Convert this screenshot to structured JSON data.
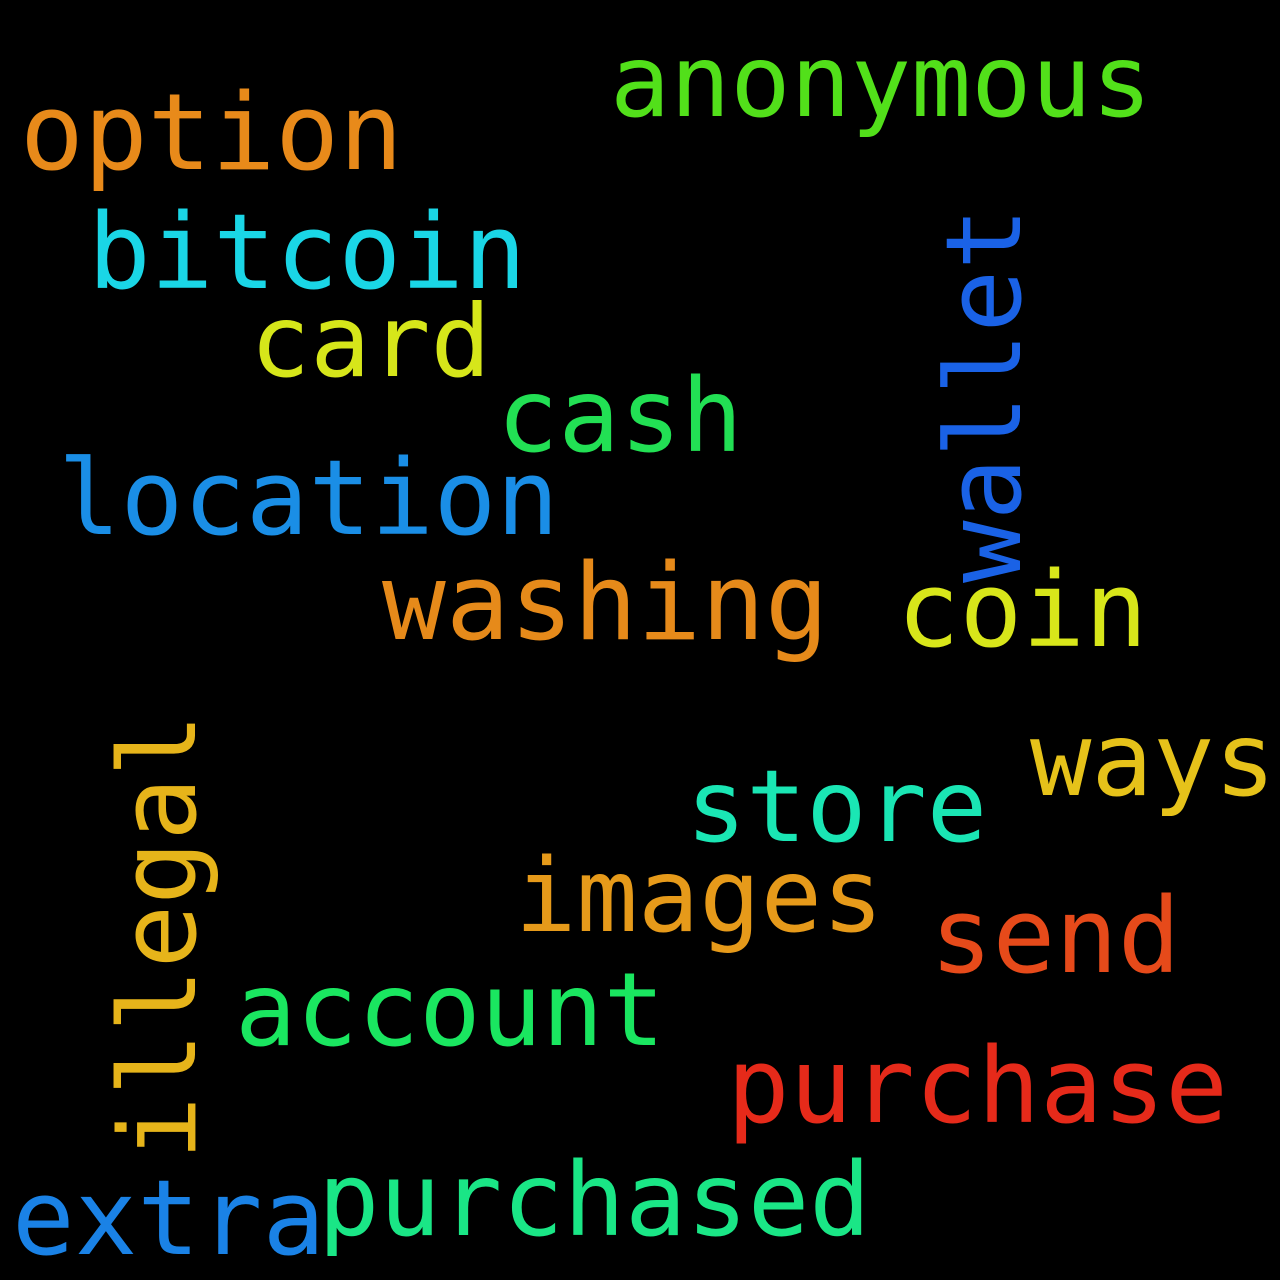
{
  "words": {
    "anonymous": {
      "text": "anonymous",
      "color": "#52e01a"
    },
    "option": {
      "text": "option",
      "color": "#e88a1a"
    },
    "bitcoin": {
      "text": "bitcoin",
      "color": "#1ad6e6"
    },
    "card": {
      "text": "card",
      "color": "#d6e61a"
    },
    "cash": {
      "text": "cash",
      "color": "#22e054"
    },
    "location": {
      "text": "location",
      "color": "#1a8ee6"
    },
    "washing": {
      "text": "washing",
      "color": "#e68a1a"
    },
    "coin": {
      "text": "coin",
      "color": "#d8e61a"
    },
    "wallet": {
      "text": "wallet",
      "color": "#1a62e6"
    },
    "ways": {
      "text": "ways",
      "color": "#e6c21a"
    },
    "store": {
      "text": "store",
      "color": "#1ae6b4"
    },
    "images": {
      "text": "images",
      "color": "#e69a1a"
    },
    "send": {
      "text": "send",
      "color": "#e64a1a"
    },
    "illegal": {
      "text": "illegal",
      "color": "#e6b41a"
    },
    "account": {
      "text": "account",
      "color": "#1ae660"
    },
    "purchase": {
      "text": "purchase",
      "color": "#e62a1a"
    },
    "extra": {
      "text": "extra",
      "color": "#1a82e6"
    },
    "purchased": {
      "text": "purchased",
      "color": "#1ae686"
    }
  }
}
